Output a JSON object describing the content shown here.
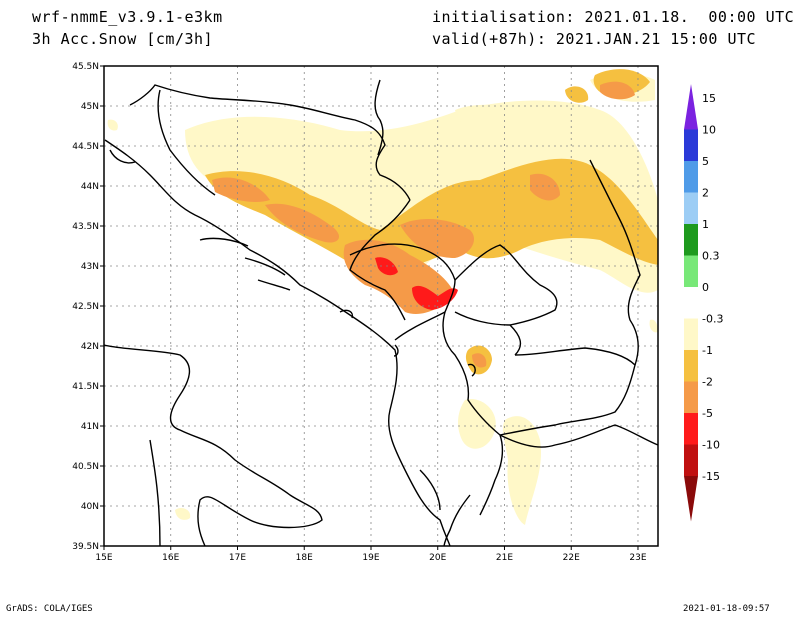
{
  "header": {
    "model": "wrf-nmmE_v3.9.1-e3km",
    "variable": "3h Acc.Snow [cm/3h]",
    "init": "initialisation: 2021.01.18.  00:00 UTC",
    "valid": "valid(+87h): 2021.JAN.21 15:00 UTC"
  },
  "footer": {
    "credit": "GrADS: COLA/IGES",
    "timestamp": "2021-01-18-09:57"
  },
  "map": {
    "lon_ticks": [
      "15E",
      "16E",
      "17E",
      "18E",
      "19E",
      "20E",
      "21E",
      "22E",
      "23E"
    ],
    "lat_ticks": [
      "45.5N",
      "45N",
      "44.5N",
      "44N",
      "43.5N",
      "43N",
      "42.5N",
      "42N",
      "41.5N",
      "41N",
      "40.5N",
      "40N",
      "39.5N"
    ],
    "lon_range": [
      15,
      23.3
    ],
    "lat_range": [
      39.5,
      45.5
    ],
    "grid": true
  },
  "colorbar": {
    "labels": [
      "15",
      "10",
      "5",
      "2",
      "1",
      "0.3",
      "0",
      "-0.3",
      "-1",
      "-2",
      "-5",
      "-10",
      "-15"
    ],
    "colors": [
      "#7b22e0",
      "#2a3ad8",
      "#4f9be8",
      "#9ccdf5",
      "#1e9a1e",
      "#78e878",
      "#ffffff",
      "#fff8c8",
      "#f5c040",
      "#f59a48",
      "#ff1a1a",
      "#c01010",
      "#8a0a0a"
    ]
  },
  "palette": {
    "light": "#fff8c8",
    "yellow": "#f5c040",
    "orange": "#f59a48",
    "red": "#ff1a1a"
  }
}
